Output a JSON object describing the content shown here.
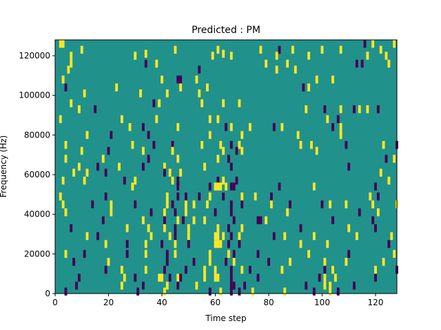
{
  "chart_data": {
    "type": "heatmap",
    "title": "Predicted : PM",
    "xlabel": "Time step",
    "ylabel": "Frequency (Hz)",
    "xlim": [
      0,
      128
    ],
    "ylim": [
      0,
      128000
    ],
    "xticks": [
      0,
      20,
      40,
      60,
      80,
      100,
      120
    ],
    "xtick_labels": [
      "0",
      "20",
      "40",
      "60",
      "80",
      "100",
      "120"
    ],
    "yticks": [
      0,
      20000,
      40000,
      60000,
      80000,
      100000,
      120000
    ],
    "ytick_labels": [
      "0",
      "20000",
      "40000",
      "60000",
      "80000",
      "100000",
      "120000"
    ],
    "grid": false,
    "legend": "none",
    "colors": {
      "background": "#21918c",
      "high": "#fde725",
      "low": "#440154"
    },
    "values_encoding": "background cells = 0, yellow cells = +1, purple cells = -1; cell = [time_step, frequency_hz, value]",
    "cells": [
      [
        2,
        126000,
        1
      ],
      [
        3,
        126000,
        1
      ],
      [
        10,
        123000,
        1
      ],
      [
        34,
        121000,
        1
      ],
      [
        45,
        123000,
        1
      ],
      [
        61,
        123000,
        1
      ],
      [
        63,
        121000,
        1
      ],
      [
        77,
        123000,
        1
      ],
      [
        84,
        123000,
        -1
      ],
      [
        89,
        123000,
        1
      ],
      [
        100,
        123000,
        1
      ],
      [
        107,
        123000,
        1
      ],
      [
        116,
        126000,
        -1
      ],
      [
        119,
        126000,
        1
      ],
      [
        122,
        123000,
        1
      ],
      [
        127,
        126000,
        1
      ],
      [
        6,
        120000,
        1
      ],
      [
        30,
        120000,
        1
      ],
      [
        59,
        120000,
        1
      ],
      [
        66,
        120000,
        1
      ],
      [
        83,
        120000,
        1
      ],
      [
        95,
        120000,
        1
      ],
      [
        117,
        120000,
        1
      ],
      [
        124,
        120000,
        1
      ],
      [
        6,
        116000,
        1
      ],
      [
        34,
        116000,
        -1
      ],
      [
        38,
        116000,
        1
      ],
      [
        79,
        116000,
        1
      ],
      [
        87,
        116000,
        1
      ],
      [
        113,
        116000,
        -1
      ],
      [
        115,
        116000,
        -1
      ],
      [
        125,
        116000,
        1
      ],
      [
        5,
        113000,
        1
      ],
      [
        54,
        113000,
        -1
      ],
      [
        83,
        113000,
        1
      ],
      [
        90,
        113000,
        1
      ],
      [
        3,
        108000,
        1
      ],
      [
        40,
        108000,
        1
      ],
      [
        46,
        108000,
        -1
      ],
      [
        47,
        108000,
        -1
      ],
      [
        53,
        108000,
        1
      ],
      [
        98,
        108000,
        1
      ],
      [
        104,
        108000,
        1
      ],
      [
        4,
        104000,
        -1
      ],
      [
        23,
        104000,
        1
      ],
      [
        47,
        104000,
        1
      ],
      [
        57,
        104000,
        1
      ],
      [
        93,
        104000,
        -1
      ],
      [
        95,
        104000,
        1
      ],
      [
        11,
        101000,
        1
      ],
      [
        32,
        101000,
        1
      ],
      [
        42,
        101000,
        1
      ],
      [
        54,
        101000,
        1
      ],
      [
        6,
        96000,
        1
      ],
      [
        37,
        96000,
        -1
      ],
      [
        39,
        96000,
        1
      ],
      [
        55,
        96000,
        1
      ],
      [
        63,
        96000,
        1
      ],
      [
        69,
        96000,
        1
      ],
      [
        9,
        93000,
        1
      ],
      [
        15,
        93000,
        -1
      ],
      [
        94,
        93000,
        1
      ],
      [
        101,
        93000,
        -1
      ],
      [
        107,
        93000,
        1
      ],
      [
        112,
        93000,
        -1
      ],
      [
        114,
        93000,
        1
      ],
      [
        117,
        93000,
        1
      ],
      [
        121,
        93000,
        -1
      ],
      [
        2,
        88000,
        1
      ],
      [
        25,
        88000,
        1
      ],
      [
        38,
        88000,
        1
      ],
      [
        58,
        88000,
        1
      ],
      [
        61,
        88000,
        1
      ],
      [
        102,
        88000,
        1
      ],
      [
        106,
        88000,
        -1
      ],
      [
        28,
        84000,
        1
      ],
      [
        33,
        84000,
        -1
      ],
      [
        46,
        84000,
        1
      ],
      [
        64,
        84000,
        -1
      ],
      [
        66,
        84000,
        1
      ],
      [
        73,
        84000,
        1
      ],
      [
        82,
        84000,
        -1
      ],
      [
        85,
        84000,
        1
      ],
      [
        104,
        84000,
        -1
      ],
      [
        107,
        84000,
        1
      ],
      [
        12,
        80000,
        1
      ],
      [
        21,
        80000,
        -1
      ],
      [
        35,
        80000,
        -1
      ],
      [
        58,
        80000,
        1
      ],
      [
        70,
        80000,
        1
      ],
      [
        91,
        80000,
        1
      ],
      [
        107,
        80000,
        1
      ],
      [
        4,
        75000,
        1
      ],
      [
        29,
        75000,
        1
      ],
      [
        37,
        75000,
        -1
      ],
      [
        44,
        75000,
        -1
      ],
      [
        55,
        75000,
        1
      ],
      [
        62,
        75000,
        1
      ],
      [
        66,
        75000,
        -1
      ],
      [
        69,
        75000,
        1
      ],
      [
        92,
        75000,
        1
      ],
      [
        96,
        75000,
        1
      ],
      [
        109,
        75000,
        -1
      ],
      [
        123,
        75000,
        1
      ],
      [
        128,
        75000,
        -1
      ],
      [
        10,
        72000,
        1
      ],
      [
        20,
        72000,
        -1
      ],
      [
        33,
        72000,
        1
      ],
      [
        44,
        72000,
        1
      ],
      [
        63,
        72000,
        1
      ],
      [
        68,
        72000,
        -1
      ],
      [
        70,
        72000,
        1
      ],
      [
        98,
        72000,
        1
      ],
      [
        4,
        68000,
        1
      ],
      [
        18,
        68000,
        1
      ],
      [
        35,
        68000,
        -1
      ],
      [
        46,
        68000,
        1
      ],
      [
        61,
        68000,
        1
      ],
      [
        65,
        68000,
        -1
      ],
      [
        124,
        68000,
        -1
      ],
      [
        127,
        68000,
        1
      ],
      [
        9,
        64000,
        1
      ],
      [
        16,
        64000,
        -1
      ],
      [
        24,
        64000,
        1
      ],
      [
        33,
        64000,
        -1
      ],
      [
        41,
        64000,
        1
      ],
      [
        56,
        64000,
        1
      ],
      [
        66,
        64000,
        -1
      ],
      [
        110,
        64000,
        -1
      ],
      [
        7,
        61000,
        1
      ],
      [
        12,
        61000,
        1
      ],
      [
        19,
        61000,
        -1
      ],
      [
        41,
        61000,
        -1
      ],
      [
        43,
        61000,
        1
      ],
      [
        47,
        61000,
        1
      ],
      [
        122,
        61000,
        1
      ],
      [
        3,
        57000,
        1
      ],
      [
        11,
        57000,
        1
      ],
      [
        26,
        57000,
        -1
      ],
      [
        30,
        57000,
        1
      ],
      [
        44,
        57000,
        1
      ],
      [
        46,
        57000,
        -1
      ],
      [
        61,
        57000,
        -1
      ],
      [
        63,
        57000,
        1
      ],
      [
        68,
        57000,
        -1
      ],
      [
        125,
        57000,
        1
      ],
      [
        29,
        54000,
        1
      ],
      [
        46,
        54000,
        -1
      ],
      [
        58,
        54000,
        -1
      ],
      [
        60,
        54000,
        1
      ],
      [
        61,
        54000,
        1
      ],
      [
        62,
        54000,
        1
      ],
      [
        64,
        54000,
        1
      ],
      [
        66,
        54000,
        -1
      ],
      [
        67,
        54000,
        -1
      ],
      [
        84,
        54000,
        -1
      ],
      [
        97,
        54000,
        1
      ],
      [
        120,
        54000,
        -1
      ],
      [
        2,
        49000,
        1
      ],
      [
        19,
        49000,
        -1
      ],
      [
        42,
        49000,
        1
      ],
      [
        46,
        49000,
        -1
      ],
      [
        49,
        49000,
        -1
      ],
      [
        54,
        49000,
        -1
      ],
      [
        58,
        49000,
        1
      ],
      [
        63,
        49000,
        -1
      ],
      [
        70,
        49000,
        1
      ],
      [
        75,
        49000,
        1
      ],
      [
        81,
        49000,
        -1
      ],
      [
        118,
        49000,
        1
      ],
      [
        121,
        49000,
        -1
      ],
      [
        3,
        45000,
        1
      ],
      [
        14,
        45000,
        -1
      ],
      [
        21,
        45000,
        1
      ],
      [
        30,
        45000,
        -1
      ],
      [
        42,
        45000,
        1
      ],
      [
        44,
        45000,
        -1
      ],
      [
        49,
        45000,
        1
      ],
      [
        52,
        45000,
        1
      ],
      [
        57,
        45000,
        1
      ],
      [
        66,
        45000,
        -1
      ],
      [
        70,
        45000,
        -1
      ],
      [
        81,
        45000,
        1
      ],
      [
        88,
        45000,
        -1
      ],
      [
        100,
        45000,
        -1
      ],
      [
        103,
        45000,
        1
      ],
      [
        109,
        45000,
        1
      ],
      [
        119,
        45000,
        1
      ],
      [
        128,
        45000,
        1
      ],
      [
        4,
        41000,
        1
      ],
      [
        21,
        41000,
        1
      ],
      [
        36,
        41000,
        -1
      ],
      [
        41,
        41000,
        1
      ],
      [
        45,
        41000,
        -1
      ],
      [
        49,
        41000,
        1
      ],
      [
        60,
        41000,
        -1
      ],
      [
        66,
        41000,
        -1
      ],
      [
        87,
        41000,
        1
      ],
      [
        114,
        41000,
        -1
      ],
      [
        121,
        41000,
        1
      ],
      [
        18,
        37000,
        -1
      ],
      [
        33,
        37000,
        1
      ],
      [
        41,
        37000,
        -1
      ],
      [
        46,
        37000,
        1
      ],
      [
        48,
        37000,
        -1
      ],
      [
        52,
        37000,
        1
      ],
      [
        56,
        37000,
        1
      ],
      [
        67,
        37000,
        -1
      ],
      [
        76,
        37000,
        -1
      ],
      [
        77,
        37000,
        -1
      ],
      [
        79,
        37000,
        1
      ],
      [
        104,
        37000,
        -1
      ],
      [
        119,
        37000,
        -1
      ],
      [
        6,
        33000,
        -1
      ],
      [
        27,
        33000,
        1
      ],
      [
        35,
        33000,
        1
      ],
      [
        41,
        33000,
        1
      ],
      [
        45,
        33000,
        -1
      ],
      [
        50,
        33000,
        1
      ],
      [
        61,
        33000,
        1
      ],
      [
        65,
        33000,
        -1
      ],
      [
        70,
        33000,
        1
      ],
      [
        92,
        33000,
        -1
      ],
      [
        110,
        33000,
        1
      ],
      [
        120,
        33000,
        -1
      ],
      [
        12,
        29000,
        1
      ],
      [
        16,
        29000,
        -1
      ],
      [
        36,
        29000,
        1
      ],
      [
        43,
        29000,
        1
      ],
      [
        45,
        29000,
        -1
      ],
      [
        50,
        29000,
        1
      ],
      [
        60,
        29000,
        1
      ],
      [
        61,
        29000,
        1
      ],
      [
        63,
        29000,
        1
      ],
      [
        66,
        29000,
        -1
      ],
      [
        69,
        29000,
        1
      ],
      [
        82,
        29000,
        -1
      ],
      [
        86,
        29000,
        1
      ],
      [
        97,
        29000,
        1
      ],
      [
        113,
        29000,
        1
      ],
      [
        126,
        29000,
        1
      ],
      [
        19,
        25000,
        1
      ],
      [
        27,
        25000,
        -1
      ],
      [
        34,
        25000,
        1
      ],
      [
        40,
        25000,
        -1
      ],
      [
        45,
        25000,
        1
      ],
      [
        50,
        25000,
        -1
      ],
      [
        60,
        25000,
        1
      ],
      [
        61,
        25000,
        1
      ],
      [
        62,
        25000,
        1
      ],
      [
        65,
        25000,
        -1
      ],
      [
        69,
        25000,
        -1
      ],
      [
        92,
        25000,
        1
      ],
      [
        102,
        25000,
        1
      ],
      [
        125,
        25000,
        -1
      ],
      [
        4,
        20000,
        1
      ],
      [
        11,
        20000,
        -1
      ],
      [
        27,
        20000,
        -1
      ],
      [
        34,
        20000,
        1
      ],
      [
        42,
        20000,
        -1
      ],
      [
        45,
        20000,
        1
      ],
      [
        58,
        20000,
        1
      ],
      [
        65,
        20000,
        1
      ],
      [
        67,
        20000,
        -1
      ],
      [
        76,
        20000,
        -1
      ],
      [
        95,
        20000,
        1
      ],
      [
        110,
        20000,
        -1
      ],
      [
        127,
        20000,
        1
      ],
      [
        7,
        16000,
        -1
      ],
      [
        20,
        16000,
        1
      ],
      [
        42,
        16000,
        -1
      ],
      [
        52,
        16000,
        -1
      ],
      [
        58,
        16000,
        1
      ],
      [
        64,
        16000,
        -1
      ],
      [
        67,
        16000,
        1
      ],
      [
        80,
        16000,
        -1
      ],
      [
        88,
        16000,
        1
      ],
      [
        101,
        16000,
        1
      ],
      [
        109,
        16000,
        1
      ],
      [
        123,
        16000,
        1
      ],
      [
        19,
        12000,
        -1
      ],
      [
        25,
        12000,
        1
      ],
      [
        34,
        12000,
        1
      ],
      [
        41,
        12000,
        -1
      ],
      [
        49,
        12000,
        -1
      ],
      [
        56,
        12000,
        1
      ],
      [
        60,
        12000,
        1
      ],
      [
        66,
        12000,
        -1
      ],
      [
        70,
        12000,
        1
      ],
      [
        73,
        12000,
        -1
      ],
      [
        85,
        12000,
        1
      ],
      [
        101,
        12000,
        -1
      ],
      [
        104,
        12000,
        1
      ],
      [
        120,
        12000,
        1
      ],
      [
        128,
        12000,
        -1
      ],
      [
        9,
        8000,
        -1
      ],
      [
        26,
        8000,
        1
      ],
      [
        30,
        8000,
        -1
      ],
      [
        39,
        8000,
        1
      ],
      [
        40,
        8000,
        1
      ],
      [
        43,
        8000,
        -1
      ],
      [
        46,
        8000,
        1
      ],
      [
        47,
        8000,
        -1
      ],
      [
        56,
        8000,
        1
      ],
      [
        60,
        8000,
        1
      ],
      [
        61,
        8000,
        1
      ],
      [
        66,
        8000,
        -1
      ],
      [
        76,
        8000,
        -1
      ],
      [
        99,
        8000,
        -1
      ],
      [
        101,
        8000,
        1
      ],
      [
        105,
        8000,
        1
      ],
      [
        120,
        8000,
        -1
      ],
      [
        8,
        4000,
        -1
      ],
      [
        25,
        4000,
        1
      ],
      [
        33,
        4000,
        -1
      ],
      [
        42,
        4000,
        1
      ],
      [
        46,
        4000,
        -1
      ],
      [
        53,
        4000,
        1
      ],
      [
        66,
        4000,
        -1
      ],
      [
        67,
        4000,
        -1
      ],
      [
        71,
        4000,
        -1
      ],
      [
        94,
        4000,
        -1
      ],
      [
        101,
        4000,
        1
      ],
      [
        103,
        4000,
        1
      ],
      [
        112,
        4000,
        -1
      ],
      [
        4,
        1000,
        -1
      ],
      [
        31,
        1000,
        -1
      ],
      [
        41,
        1000,
        1
      ],
      [
        58,
        1000,
        -1
      ],
      [
        62,
        1000,
        1
      ],
      [
        66,
        1000,
        -1
      ],
      [
        69,
        1000,
        -1
      ],
      [
        74,
        1000,
        1
      ],
      [
        86,
        1000,
        1
      ],
      [
        97,
        1000,
        -1
      ],
      [
        103,
        1000,
        1
      ],
      [
        106,
        1000,
        -1
      ]
    ]
  }
}
